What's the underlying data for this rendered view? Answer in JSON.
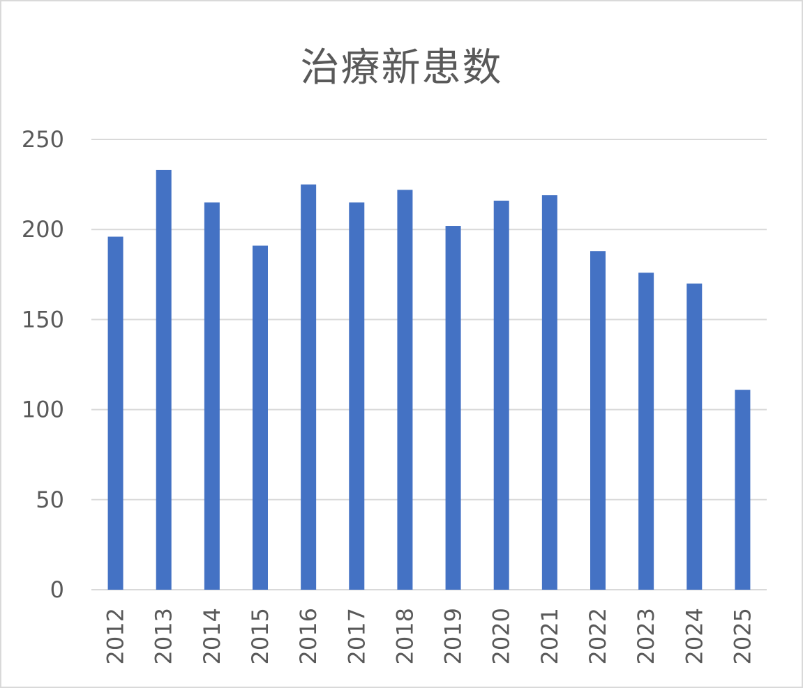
{
  "chart_data": {
    "type": "bar",
    "title": "治療新患数",
    "xlabel": "",
    "ylabel": "",
    "categories": [
      "2012",
      "2013",
      "2014",
      "2015",
      "2016",
      "2017",
      "2018",
      "2019",
      "2020",
      "2021",
      "2022",
      "2023",
      "2024",
      "2025"
    ],
    "values": [
      196,
      233,
      215,
      191,
      225,
      215,
      222,
      202,
      216,
      219,
      188,
      176,
      170,
      111
    ],
    "ylim": [
      0,
      250
    ],
    "yticks": [
      0,
      50,
      100,
      150,
      200,
      250
    ],
    "grid": true,
    "legend": "none",
    "bar_color": "#4472c4",
    "grid_color": "#d9d9d9",
    "text_color": "#595959"
  }
}
